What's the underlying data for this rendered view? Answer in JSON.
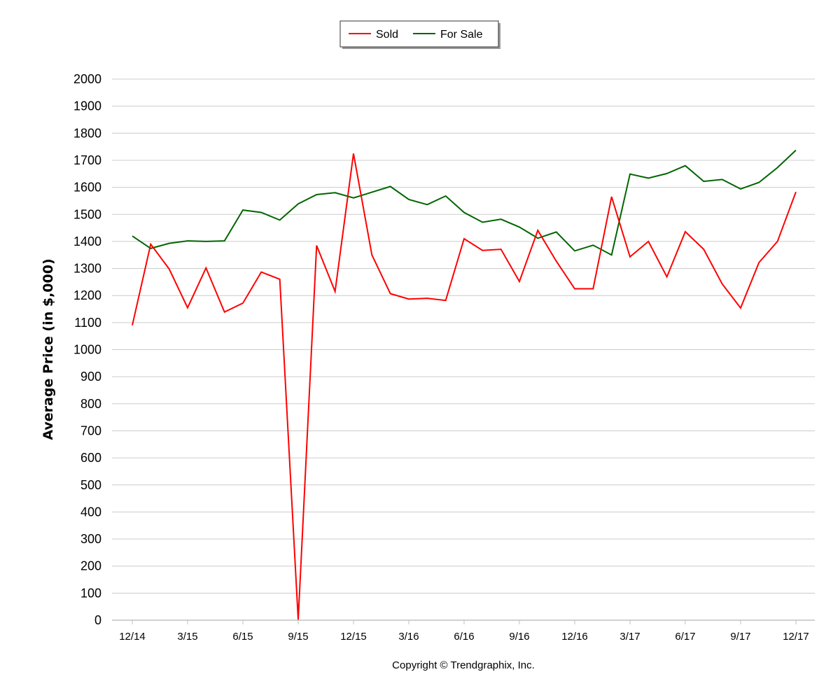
{
  "chart_data": {
    "type": "line",
    "ylabel": "Average Price (in $,000)",
    "xlabel": "",
    "ylim": [
      0,
      2000
    ],
    "ytick_step": 100,
    "grid": true,
    "legend_position": "top-center",
    "x_tick_labels": [
      "12/14",
      "3/15",
      "6/15",
      "9/15",
      "12/15",
      "3/16",
      "6/16",
      "9/16",
      "12/16",
      "3/17",
      "6/17",
      "9/17",
      "12/17"
    ],
    "x": [
      "12/14",
      "1/15",
      "2/15",
      "3/15",
      "4/15",
      "5/15",
      "6/15",
      "7/15",
      "8/15",
      "9/15",
      "10/15",
      "11/15",
      "12/15",
      "1/16",
      "2/16",
      "3/16",
      "4/16",
      "5/16",
      "6/16",
      "7/16",
      "8/16",
      "9/16",
      "10/16",
      "11/16",
      "12/16",
      "1/17",
      "2/17",
      "3/17",
      "4/17",
      "5/17",
      "6/17",
      "7/17",
      "8/17",
      "9/17",
      "10/17",
      "11/17",
      "12/17"
    ],
    "series": [
      {
        "name": "Sold",
        "color": "#ff0000",
        "values": [
          1090,
          1390,
          1298,
          1155,
          1302,
          1139,
          1172,
          1287,
          1260,
          2,
          1385,
          1215,
          1725,
          1350,
          1207,
          1187,
          1190,
          1182,
          1410,
          1367,
          1371,
          1252,
          1441,
          1327,
          1225,
          1225,
          1565,
          1343,
          1400,
          1269,
          1436,
          1371,
          1243,
          1154,
          1322,
          1400,
          1583
        ]
      },
      {
        "name": "For Sale",
        "color": "#006600",
        "values": [
          1420,
          1374,
          1393,
          1402,
          1400,
          1402,
          1516,
          1507,
          1479,
          1539,
          1573,
          1580,
          1561,
          1582,
          1603,
          1555,
          1536,
          1568,
          1507,
          1471,
          1482,
          1453,
          1412,
          1435,
          1365,
          1386,
          1350,
          1649,
          1634,
          1651,
          1680,
          1622,
          1629,
          1594,
          1618,
          1673,
          1737
        ]
      }
    ]
  },
  "footer": {
    "copyright": "Copyright © Trendgraphix, Inc."
  }
}
